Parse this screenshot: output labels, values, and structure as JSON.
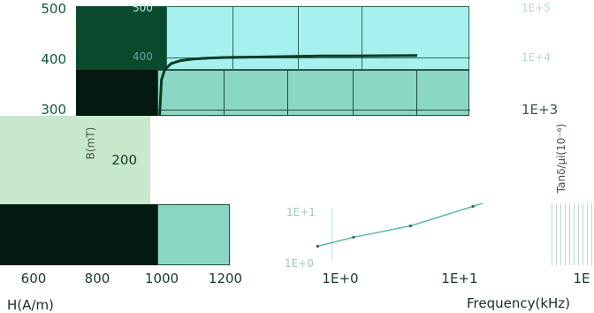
{
  "chart_data": [
    {
      "type": "line",
      "xlabel": "H(A/m)",
      "ylabel": "B(mT)",
      "y_ticks": [
        "500",
        "400",
        "300",
        "200"
      ],
      "x_ticks": [
        "600",
        "800",
        "1000",
        "1200"
      ],
      "ghost_y_ticks": [
        "500",
        "400"
      ],
      "series": [
        {
          "x": [
            990,
            995,
            1000,
            1010,
            1030,
            1060,
            1100,
            1150,
            1200,
            1300,
            1400,
            1500,
            1600,
            1800
          ],
          "y": [
            240,
            300,
            360,
            380,
            392,
            398,
            401,
            403,
            404,
            405,
            406,
            407,
            407,
            408
          ]
        }
      ]
    },
    {
      "type": "line",
      "xlabel": "Frequency(kHz)",
      "ylabel": "Tanδ/μi(10⁻⁶)",
      "x_ticks": [
        "1E+0",
        "1E+1",
        "1E"
      ],
      "y_ticks": [
        "1E+5",
        "1E+4",
        "1E+3",
        "1E+1",
        "1E+0"
      ],
      "x_scale": "log",
      "y_scale": "log",
      "series": [
        {
          "x": [
            0.5,
            1,
            3,
            10,
            20
          ],
          "y": [
            2,
            3,
            5,
            12,
            20
          ]
        }
      ]
    }
  ]
}
